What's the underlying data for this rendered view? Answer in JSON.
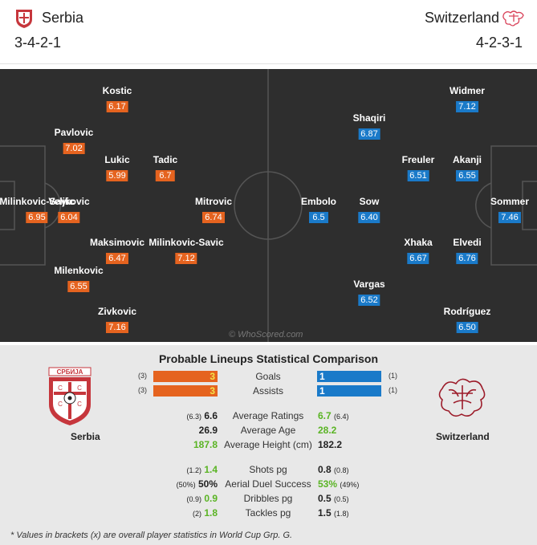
{
  "header": {
    "home_team": "Serbia",
    "home_formation": "3-4-2-1",
    "away_team": "Switzerland",
    "away_formation": "4-2-3-1"
  },
  "pitch": {
    "watermark": "© WhoScored.com",
    "home_players": [
      {
        "name": "Kostic",
        "rating": "6.17"
      },
      {
        "name": "Pavlovic",
        "rating": "7.02"
      },
      {
        "name": "Lukic",
        "rating": "5.99"
      },
      {
        "name": "Tadic",
        "rating": "6.7"
      },
      {
        "name": "Milinkovic-Savic",
        "rating": "6.95"
      },
      {
        "name": "Veljkovic",
        "rating": "6.04"
      },
      {
        "name": "Mitrovic",
        "rating": "6.74"
      },
      {
        "name": "Maksimovic",
        "rating": "6.47"
      },
      {
        "name": "Milinkovic-Savic",
        "rating": "7.12"
      },
      {
        "name": "Milenkovic",
        "rating": "6.55"
      },
      {
        "name": "Zivkovic",
        "rating": "7.16"
      }
    ],
    "away_players": [
      {
        "name": "Widmer",
        "rating": "7.12"
      },
      {
        "name": "Shaqiri",
        "rating": "6.87"
      },
      {
        "name": "Freuler",
        "rating": "6.51"
      },
      {
        "name": "Akanji",
        "rating": "6.55"
      },
      {
        "name": "Embolo",
        "rating": "6.5"
      },
      {
        "name": "Sow",
        "rating": "6.40"
      },
      {
        "name": "Sommer",
        "rating": "7.46"
      },
      {
        "name": "Xhaka",
        "rating": "6.67"
      },
      {
        "name": "Elvedi",
        "rating": "6.76"
      },
      {
        "name": "Vargas",
        "rating": "6.52"
      },
      {
        "name": "Rodríguez",
        "rating": "6.50"
      }
    ]
  },
  "stats": {
    "title": "Probable Lineups Statistical Comparison",
    "home_label": "Serbia",
    "away_label": "Switzerland",
    "crest_text": "СРБИЈА",
    "bars": [
      {
        "label": "Goals",
        "home": "3",
        "home_br": "(3)",
        "away": "1",
        "away_br": "(1)"
      },
      {
        "label": "Assists",
        "home": "3",
        "home_br": "(3)",
        "away": "1",
        "away_br": "(1)"
      }
    ],
    "group1": [
      {
        "label": "Average Ratings",
        "home": "6.6",
        "home_br": "(6.3)",
        "away": "6.7",
        "away_br": "(6.4)"
      },
      {
        "label": "Average Age",
        "home": "26.9",
        "home_br": "",
        "away": "28.2",
        "away_br": ""
      },
      {
        "label": "Average Height (cm)",
        "home": "187.8",
        "home_br": "",
        "away": "182.2",
        "away_br": ""
      }
    ],
    "group2": [
      {
        "label": "Shots pg",
        "home": "1.4",
        "home_br": "(1.2)",
        "away": "0.8",
        "away_br": "(0.8)"
      },
      {
        "label": "Aerial Duel Success",
        "home": "50%",
        "home_br": "(50%)",
        "away": "53%",
        "away_br": "(49%)"
      },
      {
        "label": "Dribbles pg",
        "home": "0.9",
        "home_br": "(0.9)",
        "away": "0.5",
        "away_br": "(0.5)"
      },
      {
        "label": "Tackles pg",
        "home": "1.8",
        "home_br": "(2)",
        "away": "1.5",
        "away_br": "(1.8)"
      }
    ],
    "footnote": "* Values in brackets (x) are overall player statistics in World Cup Grp. G."
  },
  "colors": {
    "home": "#e5631f",
    "away": "#1a7ac9",
    "better": "#5ab424",
    "pitch": "#2e2e2e"
  }
}
